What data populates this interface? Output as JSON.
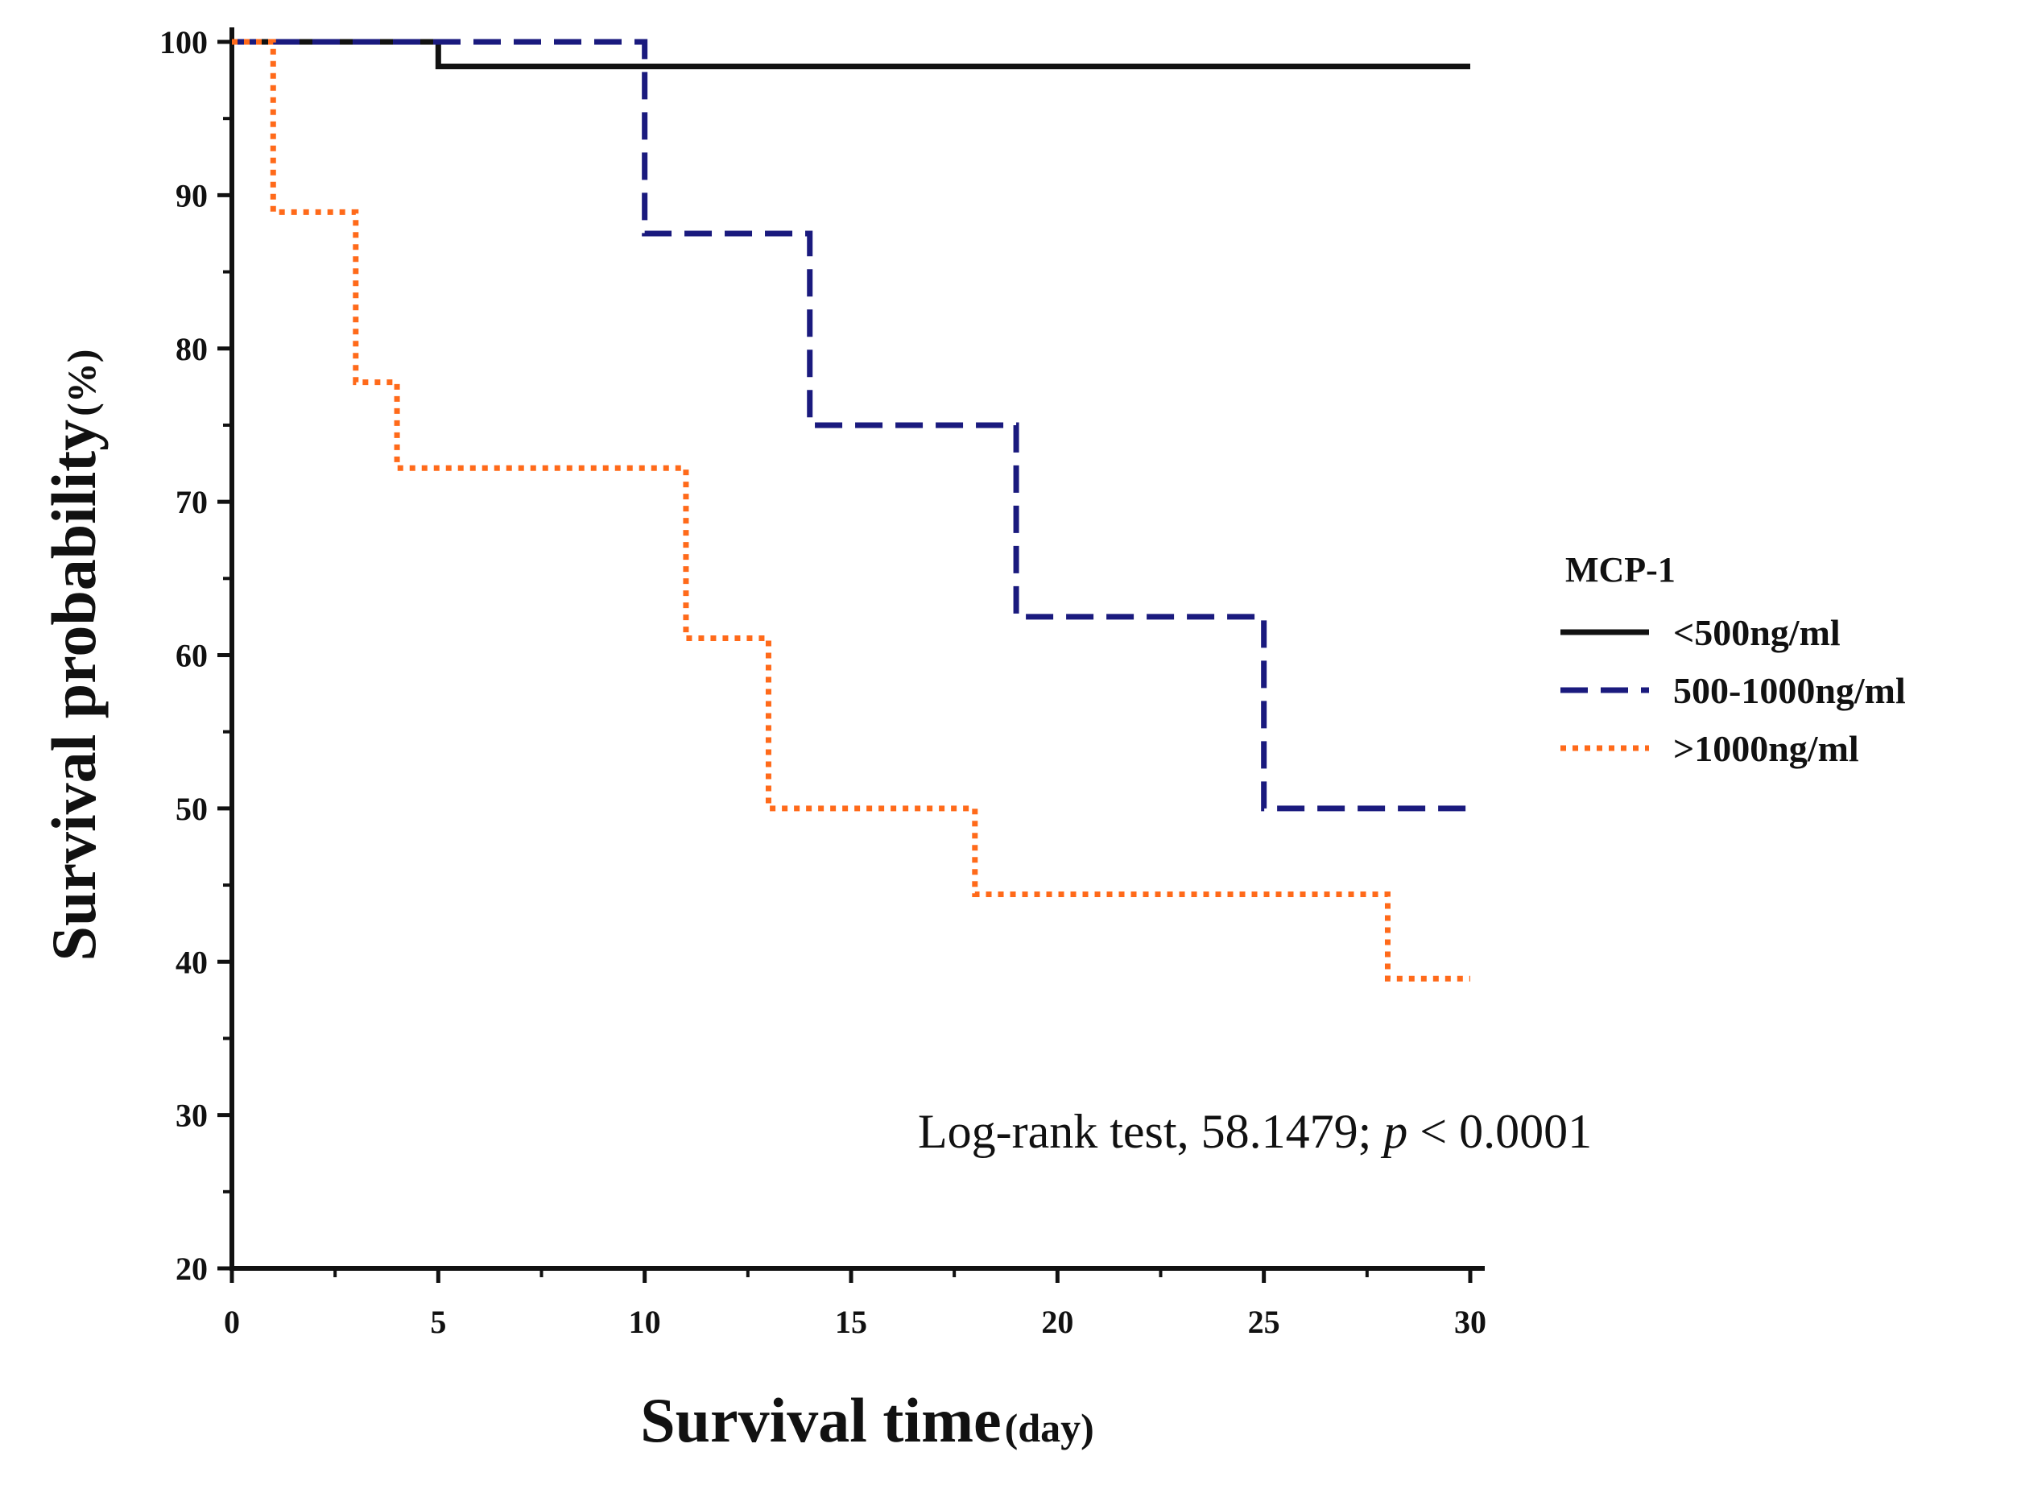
{
  "chart_data": {
    "type": "line",
    "step": true,
    "xlabel": "Survival time",
    "xlabel_unit": "(day)",
    "ylabel": "Survival probability",
    "ylabel_unit": "(%)",
    "xlim": [
      0,
      30
    ],
    "ylim": [
      20,
      100
    ],
    "x_ticks": [
      0,
      5,
      10,
      15,
      20,
      25,
      30
    ],
    "x_tick_labels": [
      "0",
      "5",
      "10",
      "15",
      "20",
      "25",
      "30"
    ],
    "y_ticks": [
      20,
      30,
      40,
      50,
      60,
      70,
      80,
      90,
      100
    ],
    "y_tick_labels": [
      "20",
      "30",
      "40",
      "50",
      "60",
      "70",
      "80",
      "90",
      "100"
    ],
    "grid": false,
    "legend": {
      "title": "MCP-1",
      "placement": "right"
    },
    "series": [
      {
        "name": "<500ng/ml",
        "color": "#111111",
        "style": "solid",
        "points": [
          [
            0,
            100
          ],
          [
            5,
            100
          ],
          [
            5,
            98.4
          ],
          [
            30,
            98.4
          ]
        ]
      },
      {
        "name": "500-1000ng/ml",
        "color": "#1a1a7e",
        "style": "dashed",
        "points": [
          [
            0,
            100
          ],
          [
            10,
            100
          ],
          [
            10,
            87.5
          ],
          [
            14,
            87.5
          ],
          [
            14,
            75
          ],
          [
            19,
            75
          ],
          [
            19,
            62.5
          ],
          [
            25,
            62.5
          ],
          [
            25,
            50
          ],
          [
            30,
            50
          ]
        ]
      },
      {
        "name": ">1000ng/ml",
        "color": "#ff6a1a",
        "style": "dotted",
        "points": [
          [
            0,
            100
          ],
          [
            1,
            100
          ],
          [
            1,
            88.9
          ],
          [
            3,
            88.9
          ],
          [
            3,
            77.8
          ],
          [
            4,
            77.8
          ],
          [
            4,
            72.2
          ],
          [
            11,
            72.2
          ],
          [
            11,
            61.1
          ],
          [
            13,
            61.1
          ],
          [
            13,
            50
          ],
          [
            18,
            50
          ],
          [
            18,
            44.4
          ],
          [
            28,
            44.4
          ],
          [
            28,
            38.9
          ],
          [
            30,
            38.9
          ]
        ]
      }
    ],
    "annotation": {
      "text_prefix": "Log-rank test, 58.1479; ",
      "text_italic": "p",
      "text_suffix": "  < 0.0001"
    }
  }
}
